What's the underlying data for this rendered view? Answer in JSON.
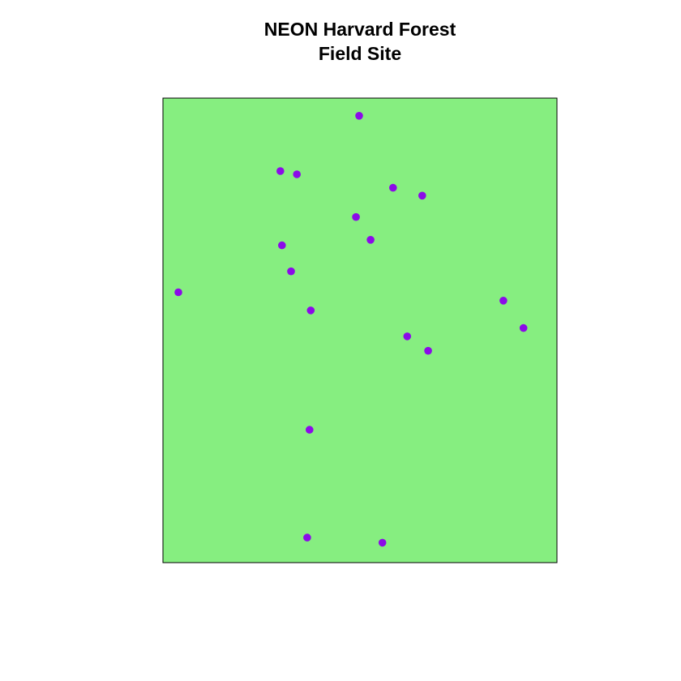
{
  "title": {
    "line1": "NEON Harvard Forest",
    "line2": "Field Site"
  },
  "colors": {
    "background": "#ffffff",
    "site_fill": "#86ee80",
    "site_border": "#000000",
    "point_color": "#8b0be8"
  },
  "chart_data": {
    "type": "scatter",
    "title": "NEON Harvard Forest Field Site",
    "xlim": [
      0,
      1
    ],
    "ylim": [
      0,
      1
    ],
    "grid": false,
    "legend": "none",
    "points": [
      {
        "x": 0.498,
        "y": 0.962
      },
      {
        "x": 0.298,
        "y": 0.843
      },
      {
        "x": 0.34,
        "y": 0.836
      },
      {
        "x": 0.584,
        "y": 0.807
      },
      {
        "x": 0.658,
        "y": 0.79
      },
      {
        "x": 0.49,
        "y": 0.744
      },
      {
        "x": 0.527,
        "y": 0.695
      },
      {
        "x": 0.302,
        "y": 0.683
      },
      {
        "x": 0.325,
        "y": 0.627
      },
      {
        "x": 0.039,
        "y": 0.582
      },
      {
        "x": 0.375,
        "y": 0.543
      },
      {
        "x": 0.864,
        "y": 0.564
      },
      {
        "x": 0.915,
        "y": 0.505
      },
      {
        "x": 0.62,
        "y": 0.487
      },
      {
        "x": 0.673,
        "y": 0.456
      },
      {
        "x": 0.372,
        "y": 0.286
      },
      {
        "x": 0.366,
        "y": 0.054
      },
      {
        "x": 0.557,
        "y": 0.043
      }
    ]
  }
}
